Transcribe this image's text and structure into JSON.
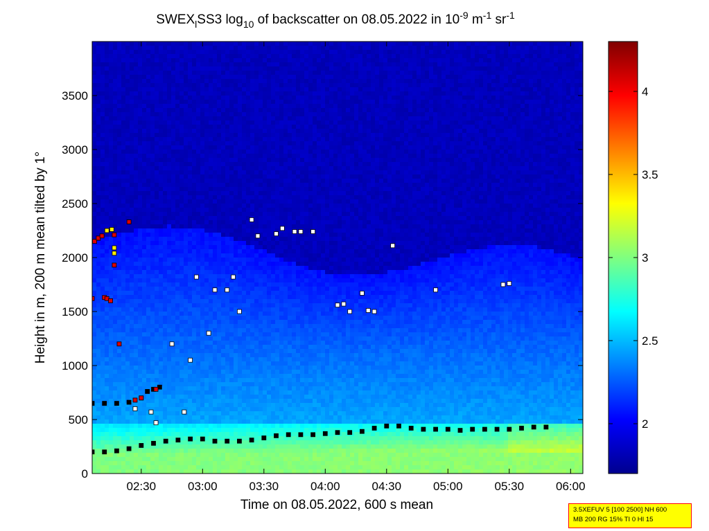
{
  "chart_data": {
    "type": "heatmap",
    "title": {
      "parts": [
        {
          "text": "SWEX"
        },
        {
          "text": "l",
          "sub": true
        },
        {
          "text": "SS3 log"
        },
        {
          "text": "10",
          "sub": true
        },
        {
          "text": " of backscatter on 08.05.2022 in 10"
        },
        {
          "text": "-9",
          "sup": true
        },
        {
          "text": " m"
        },
        {
          "text": "-1",
          "sup": true
        },
        {
          "text": " sr"
        },
        {
          "text": "-1",
          "sup": true
        }
      ]
    },
    "xlabel": "Time on 08.05.2022, 600 s mean",
    "ylabel": "Height in m, 200 m mean tilted by 1°",
    "x_range_hours": [
      2.1,
      6.1
    ],
    "x_ticks": [
      {
        "value": 2.5,
        "label": "02:30"
      },
      {
        "value": 3.0,
        "label": "03:00"
      },
      {
        "value": 3.5,
        "label": "03:30"
      },
      {
        "value": 4.0,
        "label": "04:00"
      },
      {
        "value": 4.5,
        "label": "04:30"
      },
      {
        "value": 5.0,
        "label": "05:00"
      },
      {
        "value": 5.5,
        "label": "05:30"
      },
      {
        "value": 6.0,
        "label": "06:00"
      }
    ],
    "ylim": [
      0,
      4000
    ],
    "y_ticks": [
      0,
      500,
      1000,
      1500,
      2000,
      2500,
      3000,
      3500
    ],
    "colorbar": {
      "range": [
        1.7,
        4.3
      ],
      "ticks": [
        {
          "value": 2,
          "label": "2"
        },
        {
          "value": 2.5,
          "label": "2.5"
        },
        {
          "value": 3,
          "label": "3"
        },
        {
          "value": 3.5,
          "label": "3.5"
        },
        {
          "value": 4,
          "label": "4"
        }
      ],
      "colormap": "jet"
    },
    "series": [
      {
        "marker": "black-square",
        "points": [
          [
            2.1,
            200
          ],
          [
            2.2,
            200
          ],
          [
            2.3,
            210
          ],
          [
            2.4,
            230
          ],
          [
            2.5,
            260
          ],
          [
            2.6,
            280
          ],
          [
            2.7,
            300
          ],
          [
            2.8,
            310
          ],
          [
            2.9,
            320
          ],
          [
            3.0,
            320
          ],
          [
            3.1,
            300
          ],
          [
            3.2,
            300
          ],
          [
            3.3,
            300
          ],
          [
            3.4,
            310
          ],
          [
            3.5,
            330
          ],
          [
            3.6,
            350
          ],
          [
            3.7,
            360
          ],
          [
            3.8,
            360
          ],
          [
            3.9,
            360
          ],
          [
            4.0,
            370
          ],
          [
            4.1,
            380
          ],
          [
            4.2,
            380
          ],
          [
            4.3,
            390
          ],
          [
            4.4,
            420
          ],
          [
            4.5,
            440
          ],
          [
            4.6,
            440
          ],
          [
            4.7,
            420
          ],
          [
            4.8,
            410
          ],
          [
            4.9,
            410
          ],
          [
            5.0,
            410
          ],
          [
            5.1,
            400
          ],
          [
            5.2,
            410
          ],
          [
            5.3,
            410
          ],
          [
            5.4,
            410
          ],
          [
            5.5,
            410
          ],
          [
            5.6,
            420
          ],
          [
            5.7,
            430
          ],
          [
            5.8,
            430
          ],
          [
            2.1,
            650
          ],
          [
            2.2,
            650
          ],
          [
            2.3,
            650
          ],
          [
            2.4,
            660
          ],
          [
            2.5,
            700
          ],
          [
            2.55,
            760
          ],
          [
            2.6,
            780
          ],
          [
            2.65,
            800
          ]
        ]
      },
      {
        "marker": "white-square",
        "points": [
          [
            2.45,
            600
          ],
          [
            2.58,
            570
          ],
          [
            2.62,
            470
          ],
          [
            2.75,
            1200
          ],
          [
            2.85,
            570
          ],
          [
            2.9,
            1050
          ],
          [
            2.95,
            1820
          ],
          [
            3.05,
            1300
          ],
          [
            3.1,
            1700
          ],
          [
            3.2,
            1700
          ],
          [
            3.25,
            1820
          ],
          [
            3.3,
            1500
          ],
          [
            3.4,
            2350
          ],
          [
            3.45,
            2200
          ],
          [
            3.6,
            2220
          ],
          [
            3.65,
            2270
          ],
          [
            3.75,
            2240
          ],
          [
            3.8,
            2240
          ],
          [
            3.9,
            2240
          ],
          [
            4.1,
            1560
          ],
          [
            4.15,
            1570
          ],
          [
            4.2,
            1500
          ],
          [
            4.3,
            1670
          ],
          [
            4.35,
            1510
          ],
          [
            4.4,
            1500
          ],
          [
            4.55,
            2110
          ],
          [
            4.9,
            1700
          ],
          [
            5.45,
            1750
          ],
          [
            5.5,
            1760
          ]
        ]
      },
      {
        "marker": "red-square",
        "points": [
          [
            2.12,
            2150
          ],
          [
            2.15,
            2180
          ],
          [
            2.18,
            2200
          ],
          [
            2.2,
            1630
          ],
          [
            2.22,
            1620
          ],
          [
            2.25,
            1600
          ],
          [
            2.28,
            1930
          ],
          [
            2.28,
            2210
          ],
          [
            2.32,
            1200
          ],
          [
            2.4,
            2330
          ],
          [
            2.45,
            680
          ],
          [
            2.5,
            700
          ],
          [
            2.62,
            780
          ],
          [
            2.1,
            1620
          ]
        ]
      },
      {
        "marker": "yellow-square",
        "points": [
          [
            2.22,
            2250
          ],
          [
            2.28,
            2090
          ],
          [
            2.28,
            2040
          ],
          [
            2.26,
            2260
          ]
        ]
      }
    ]
  },
  "info_box": {
    "line1": "3.5XEFUV 5 [100 2500] NH 600",
    "line2": "MB 200 RG 15% TI 0 HI 15"
  }
}
